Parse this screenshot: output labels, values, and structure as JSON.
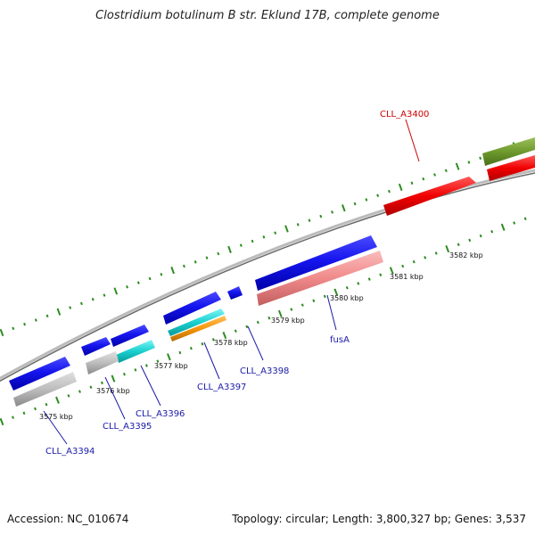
{
  "title": "Clostridium botulinum B str. Eklund 17B, complete genome",
  "footer": {
    "accession": "Accession: NC_010674",
    "info": "Topology: circular; Length: 3,800,327 bp; Genes: 3,537"
  },
  "colors": {
    "backbone": "#808080",
    "tick": "#2e8b22",
    "label_blue": "#1a1aa8",
    "label_red": "#cc0000"
  },
  "scale_labels": [
    "3575 kbp",
    "3576 kbp",
    "3577 kbp",
    "3578 kbp",
    "3579 kbp",
    "3580 kbp",
    "3581 kbp",
    "3582 kbp"
  ],
  "gene_labels": {
    "cll_a3394": "CLL_A3394",
    "cll_a3395": "CLL_A3395",
    "cll_a3396": "CLL_A3396",
    "cll_a3397": "CLL_A3397",
    "cll_a3398": "CLL_A3398",
    "fusa": "fusA",
    "cll_a3400": "CLL_A3400"
  }
}
